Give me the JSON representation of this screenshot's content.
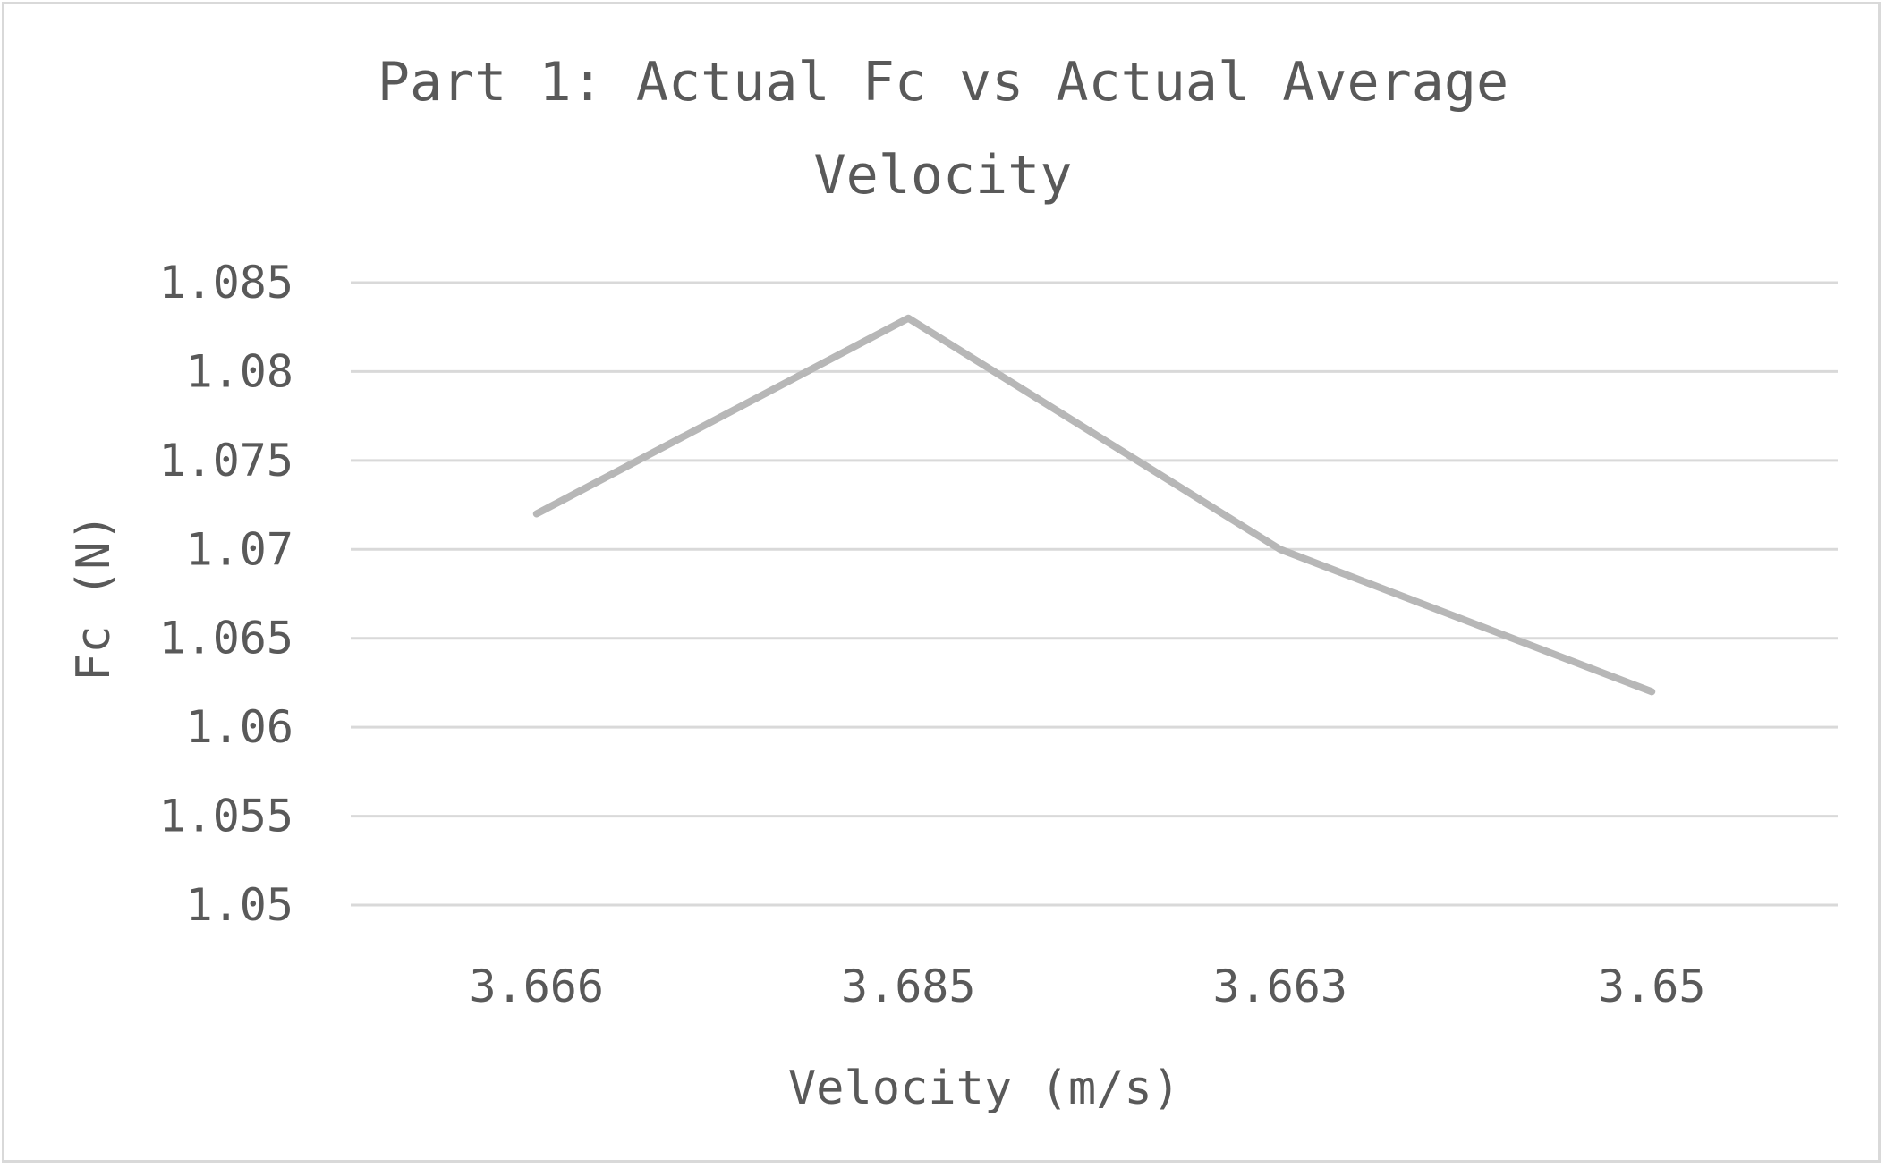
{
  "chart_data": {
    "type": "line",
    "title_lines": [
      "Part 1: Actual Fc vs Actual Average",
      "Velocity"
    ],
    "xlabel": "Velocity (m/s)",
    "ylabel": "Fc (N)",
    "categories": [
      "3.666",
      "3.685",
      "3.663",
      "3.65"
    ],
    "series": [
      {
        "values": [
          1.072,
          1.083,
          1.07,
          1.062
        ],
        "color": "#b7b7b7"
      }
    ],
    "ylim": [
      1.05,
      1.085
    ],
    "y_ticks": [
      "1.05",
      "1.055",
      "1.06",
      "1.065",
      "1.07",
      "1.075",
      "1.08",
      "1.085"
    ],
    "grid": true,
    "legend": "none"
  }
}
